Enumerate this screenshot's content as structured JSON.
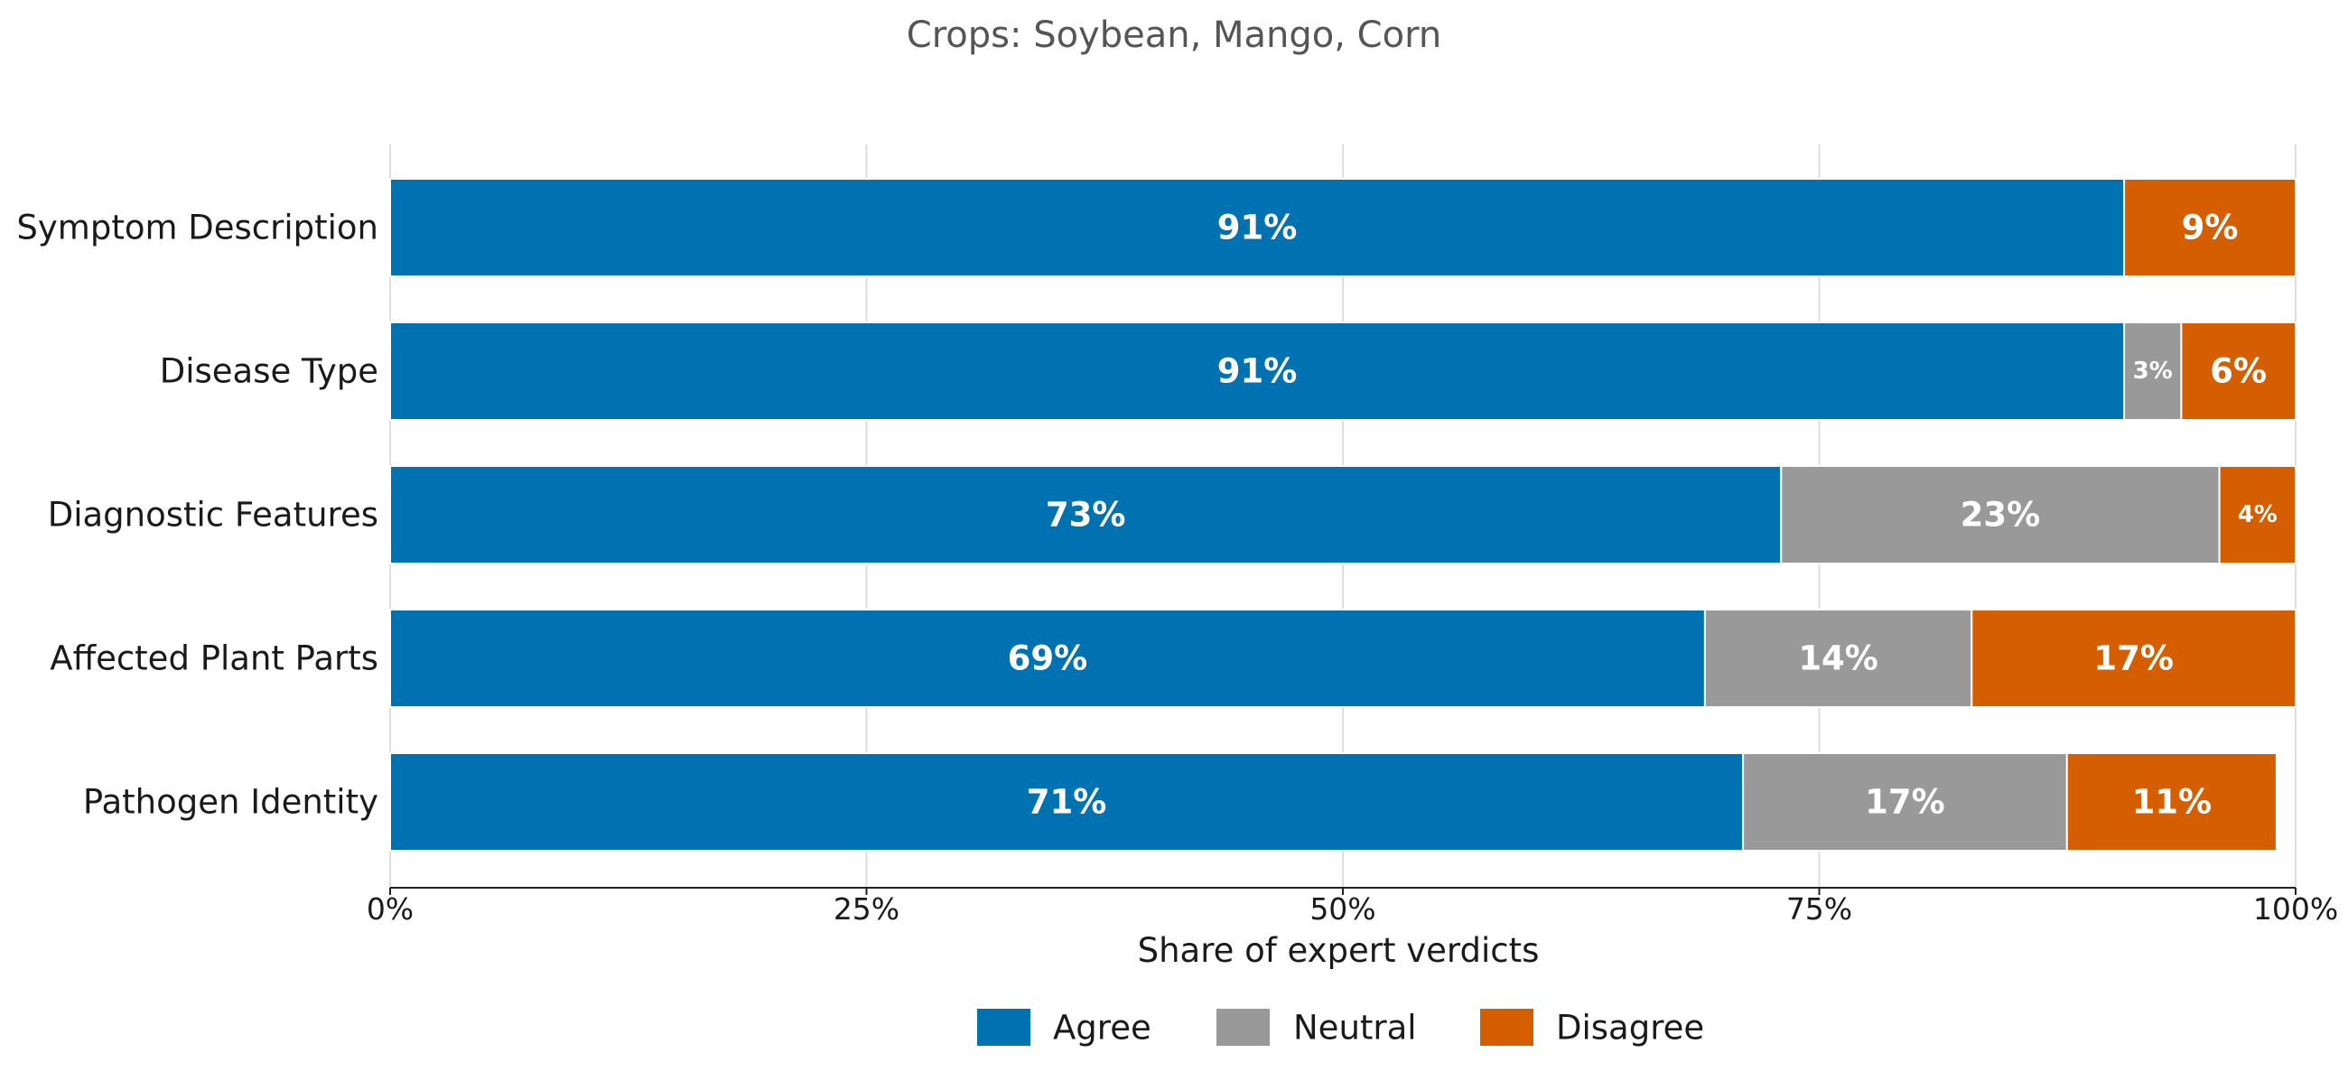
{
  "chart_data": {
    "type": "bar",
    "orientation": "horizontal",
    "stacked": true,
    "title": "Crops: Soybean, Mango, Corn",
    "xlabel": "Share of expert verdicts",
    "ylabel": "",
    "categories": [
      "Symptom Description",
      "Disease Type",
      "Diagnostic Features",
      "Affected Plant Parts",
      "Pathogen Identity"
    ],
    "series": [
      {
        "name": "Agree",
        "color": "#0072B2",
        "values": [
          91,
          91,
          73,
          69,
          71
        ]
      },
      {
        "name": "Neutral",
        "color": "#999999",
        "values": [
          0,
          3,
          23,
          14,
          17
        ]
      },
      {
        "name": "Disagree",
        "color": "#D55E00",
        "values": [
          9,
          6,
          4,
          17,
          11
        ]
      }
    ],
    "data_labels": [
      [
        "91%",
        "",
        "9%"
      ],
      [
        "91%",
        "3%",
        "6%"
      ],
      [
        "73%",
        "23%",
        "4%"
      ],
      [
        "69%",
        "14%",
        "17%"
      ],
      [
        "71%",
        "17%",
        "11%"
      ]
    ],
    "xlim": [
      0,
      100
    ],
    "xticks": [
      0,
      25,
      50,
      75,
      100
    ],
    "xtick_labels": [
      "0%",
      "25%",
      "50%",
      "75%",
      "100%"
    ],
    "grid": "vertical",
    "legend": {
      "position": "bottom",
      "entries": [
        "Agree",
        "Neutral",
        "Disagree"
      ]
    }
  }
}
